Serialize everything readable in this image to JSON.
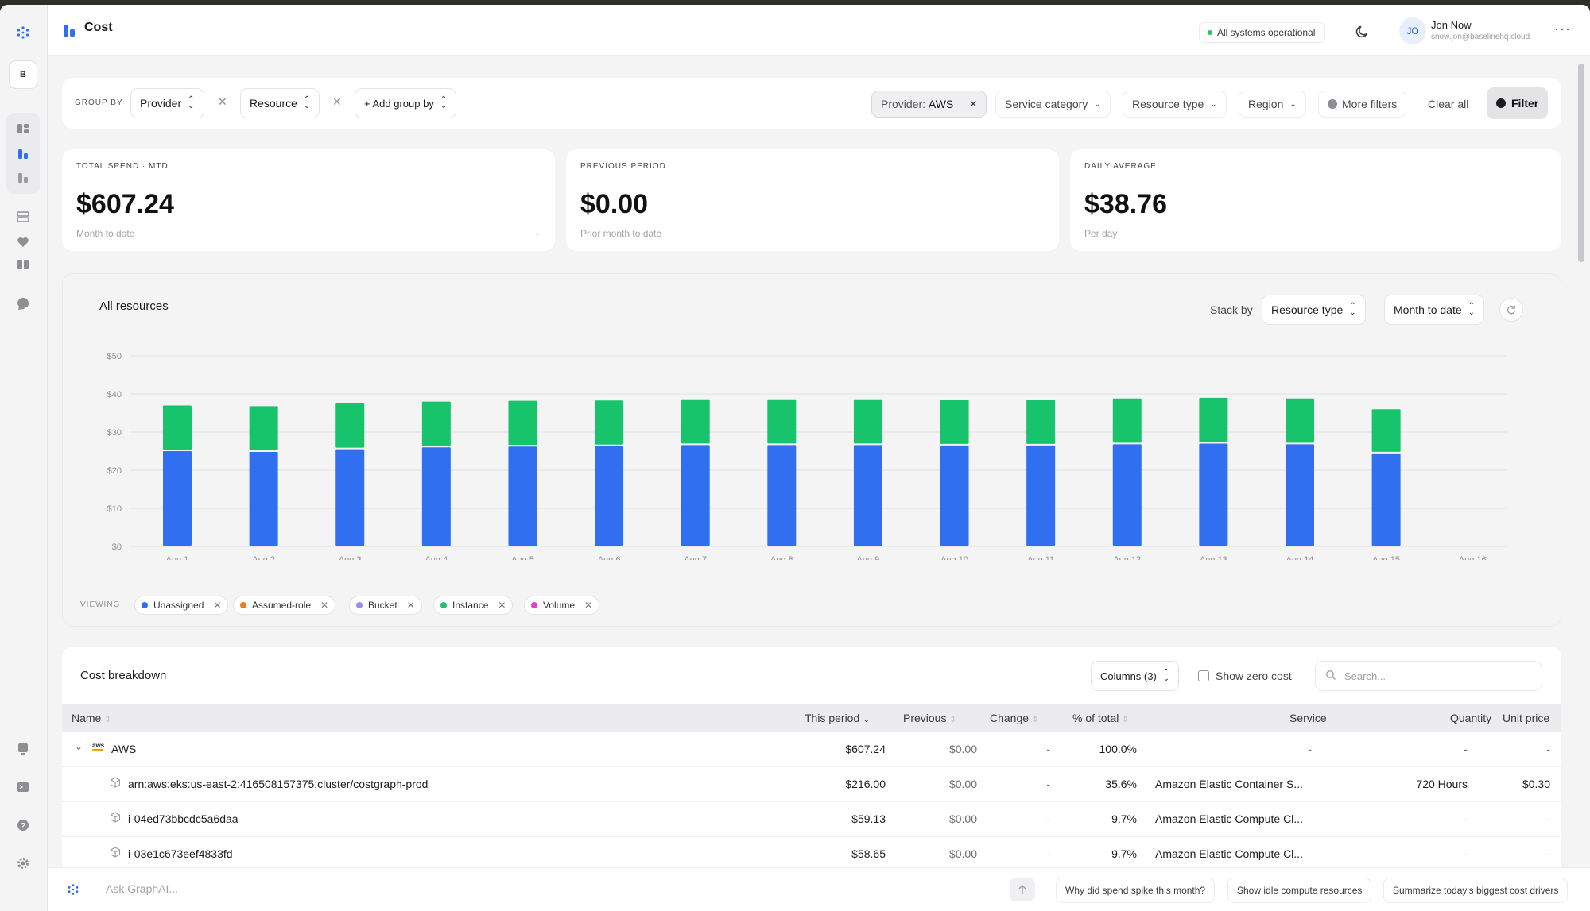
{
  "app": {
    "title": "Cost"
  },
  "status": {
    "text": "All systems operational",
    "color": "#22c55e"
  },
  "user": {
    "initials": "JO",
    "name": "Jon Now",
    "email": "snow.jon@baselinehq.cloud"
  },
  "workspace_badge": "B",
  "groupby": {
    "label": "GROUP BY",
    "chips": [
      "Provider",
      "Resource"
    ],
    "add_label": "+ Add group by"
  },
  "filters": {
    "provider_key": "Provider:",
    "provider_value": "AWS",
    "service_category": "Service category",
    "resource_type": "Resource type",
    "region": "Region",
    "more_filters": "More filters",
    "clear_all": "Clear all",
    "filter_button": "Filter"
  },
  "kpis": [
    {
      "label": "TOTAL SPEND · MTD",
      "value": "$607.24",
      "sub": "Month to date",
      "extra": "-"
    },
    {
      "label": "PREVIOUS PERIOD",
      "value": "$0.00",
      "sub": "Prior month to date"
    },
    {
      "label": "DAILY AVERAGE",
      "value": "$38.76",
      "sub": "Per day"
    }
  ],
  "chart": {
    "title": "All resources",
    "stack_by_label": "Stack by",
    "stack_by_value": "Resource type",
    "range_value": "Month to date",
    "viewing_label": "VIEWING",
    "legend": [
      {
        "name": "Unassigned",
        "color": "#2f6ff0"
      },
      {
        "name": "Assumed-role",
        "color": "#f07b1c"
      },
      {
        "name": "Bucket",
        "color": "#9d8ce8"
      },
      {
        "name": "Instance",
        "color": "#17c46c"
      },
      {
        "name": "Volume",
        "color": "#e040c8"
      }
    ]
  },
  "chart_data": {
    "type": "bar",
    "stacked": true,
    "categories": [
      "Aug 1",
      "Aug 2",
      "Aug 3",
      "Aug 4",
      "Aug 5",
      "Aug 6",
      "Aug 7",
      "Aug 8",
      "Aug 9",
      "Aug 10",
      "Aug 11",
      "Aug 12",
      "Aug 13",
      "Aug 14",
      "Aug 15",
      "Aug 16"
    ],
    "series": [
      {
        "name": "Unassigned",
        "color": "#2f6ff0",
        "values": [
          25.2,
          25.0,
          25.7,
          26.2,
          26.4,
          26.5,
          26.8,
          26.8,
          26.8,
          26.7,
          26.7,
          27.0,
          27.2,
          27.0,
          24.6,
          null
        ]
      },
      {
        "name": "Instance",
        "color": "#17c46c",
        "values": [
          12.0,
          12.0,
          12.0,
          12.0,
          12.0,
          12.0,
          12.0,
          12.0,
          12.0,
          12.0,
          12.0,
          12.0,
          12.0,
          12.0,
          11.6,
          null
        ]
      }
    ],
    "yticks": [
      "$0",
      "$10",
      "$20",
      "$30",
      "$40",
      "$50"
    ],
    "ylim": [
      0,
      50
    ],
    "grid": true
  },
  "breakdown": {
    "title": "Cost breakdown",
    "columns_label": "Columns (3)",
    "show_zero_cost": "Show zero cost",
    "search_placeholder": "Search...",
    "headers": [
      "Name",
      "This period",
      "Previous",
      "Change",
      "% of total",
      "Service",
      "Quantity",
      "Unit price"
    ],
    "rows": [
      {
        "name": "AWS",
        "this_period": "$607.24",
        "previous": "$0.00",
        "change": "-",
        "pct": "100.0%",
        "service": "-",
        "quantity": "-",
        "unit_price": "-"
      },
      {
        "name": "arn:aws:eks:us-east-2:416508157375:cluster/costgraph-prod",
        "this_period": "$216.00",
        "previous": "$0.00",
        "change": "-",
        "pct": "35.6%",
        "service": "Amazon Elastic Container S...",
        "quantity": "720 Hours",
        "unit_price": "$0.30"
      },
      {
        "name": "i-04ed73bbcdc5a6daa",
        "this_period": "$59.13",
        "previous": "$0.00",
        "change": "-",
        "pct": "9.7%",
        "service": "Amazon Elastic Compute Cl...",
        "quantity": "-",
        "unit_price": "-"
      },
      {
        "name": "i-03e1c673eef4833fd",
        "this_period": "$58.65",
        "previous": "$0.00",
        "change": "-",
        "pct": "9.7%",
        "service": "Amazon Elastic Compute Cl...",
        "quantity": "-",
        "unit_price": "-"
      }
    ]
  },
  "ask": {
    "placeholder": "Ask GraphAI...",
    "suggestions": [
      "Why did spend spike this month?",
      "Show idle compute resources",
      "Summarize today's biggest cost drivers"
    ]
  }
}
